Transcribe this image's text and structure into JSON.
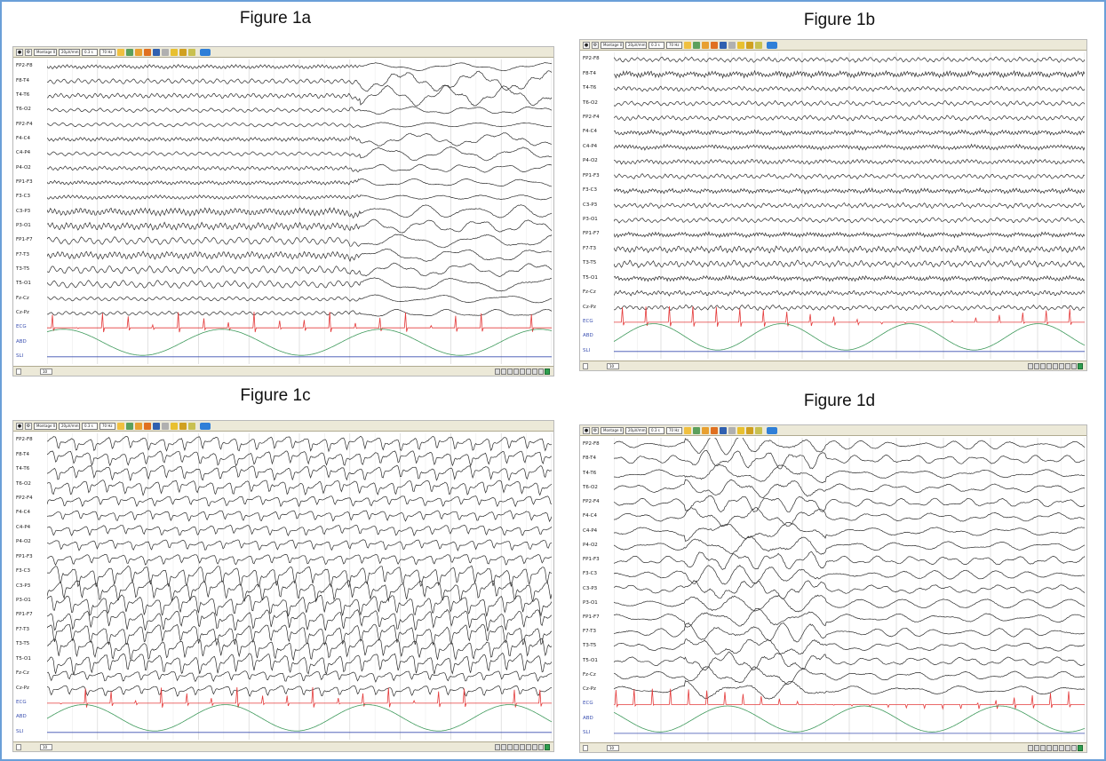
{
  "figures": [
    {
      "title": "Figure 1a"
    },
    {
      "title": "Figure 1b"
    },
    {
      "title": "Figure 1c"
    },
    {
      "title": "Figure 1d"
    }
  ],
  "toolbar": {
    "montage": "Montage 0",
    "sensitivity": "20µV/mm",
    "low_filter": "0.3 s",
    "high_filter": "70 Hz"
  },
  "status": {
    "page": "10 s"
  },
  "channels": [
    "FP2-F8",
    "F8-T4",
    "T4-T6",
    "T6-O2",
    "FP2-F4",
    "F4-C4",
    "C4-P4",
    "P4-O2",
    "FP1-F3",
    "F3-C3",
    "C3-P3",
    "P3-O1",
    "FP1-F7",
    "F7-T3",
    "T3-T5",
    "T5-O1",
    "Fz-Cz",
    "Cz-Pz",
    "ECG",
    "ABD",
    "SLI"
  ],
  "colors": {
    "eeg": "#2b2b2b",
    "ecg": "#e43a3a",
    "abd": "#3f9a5c",
    "sli": "#3a4fb0",
    "frame_border": "#6a9fd8",
    "grid": "#d9d9d9"
  }
}
